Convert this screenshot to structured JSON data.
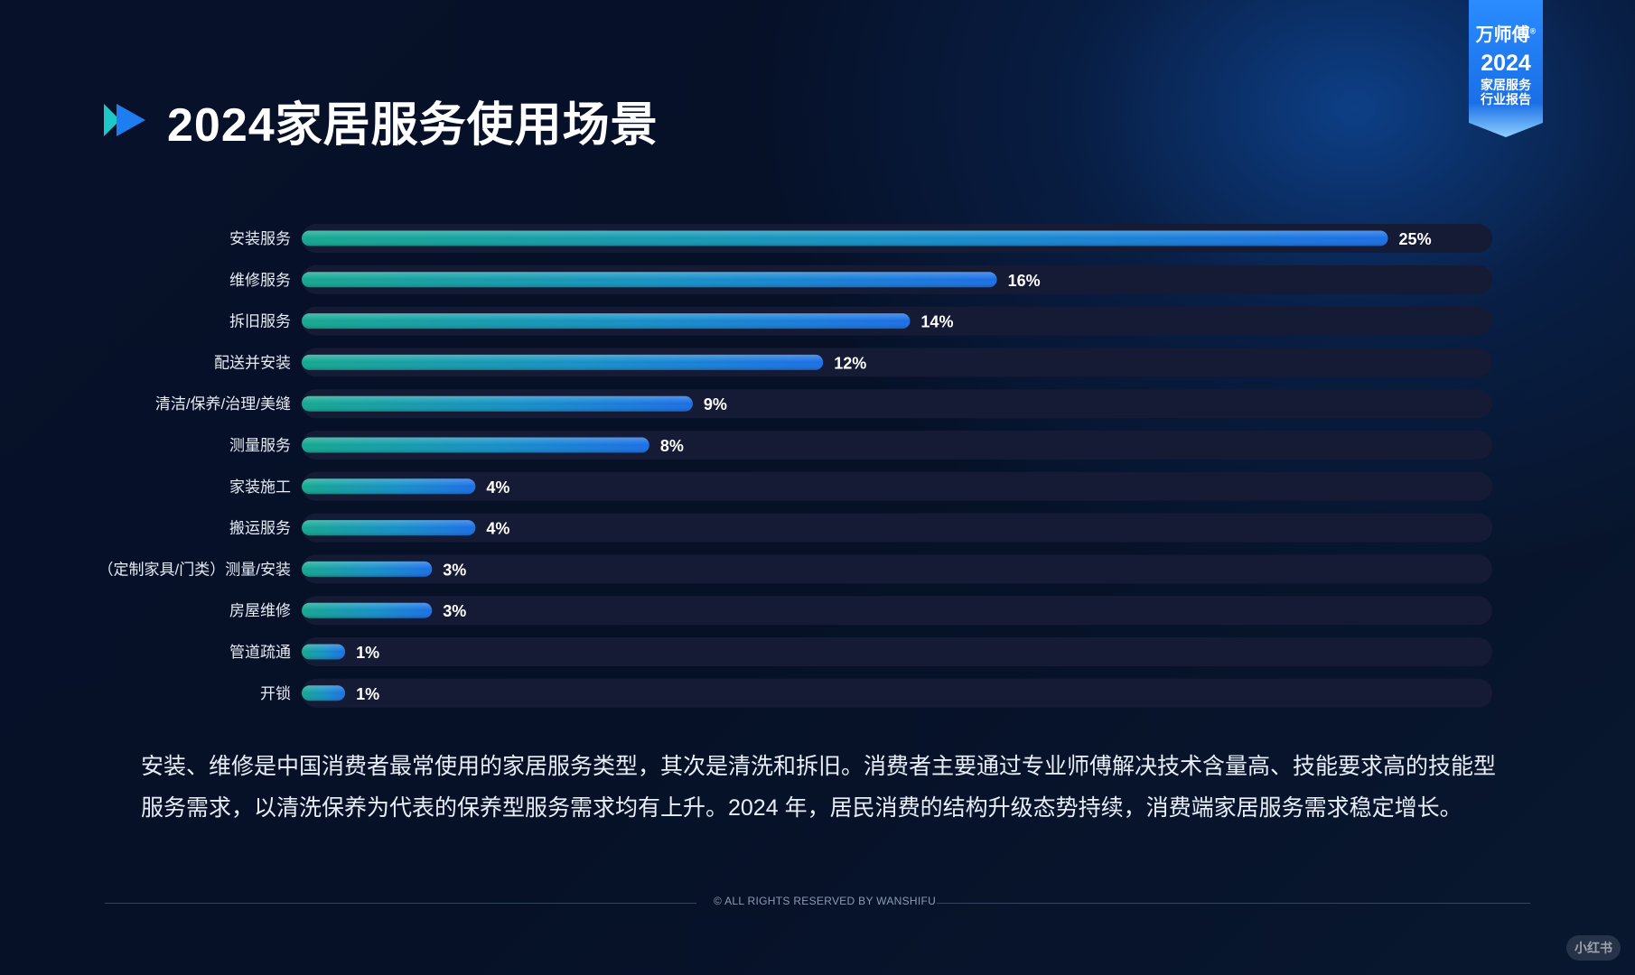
{
  "page": {
    "title": "2024家居服务使用场景",
    "badge": {
      "brand": "万师傅",
      "trademark": "®",
      "year": "2024",
      "line1": "家居服务",
      "line2": "行业报告"
    },
    "description": [
      "安装、维修是中国消费者最常使用的家居服务类型，其次是清洗和拆旧。消费者主要通过专业师傅解决技术含量高、技能要求高的技能型",
      "服务需求，以清洗保养为代表的保养型服务需求均有上升。2024 年，居民消费的结构升级态势持续，消费端家居服务需求稳定增长。"
    ],
    "footer": "© ALL RIGHTS RESERVED BY WANSHIFU",
    "watermark": "小红书",
    "colors": {
      "bar_start": "#14a890",
      "bar_end": "#1a6fe6",
      "track": "#151b34",
      "accent_cyan": "#1ec8c8",
      "accent_blue": "#1e7df0"
    }
  },
  "chart_data": {
    "type": "bar",
    "orientation": "horizontal",
    "title": "2024家居服务使用场景",
    "categories": [
      "安装服务",
      "维修服务",
      "拆旧服务",
      "配送并安装",
      "清洁/保养/治理/美缝",
      "测量服务",
      "家装施工",
      "搬运服务",
      "（定制家具/门类）测量/安装",
      "房屋维修",
      "管道疏通",
      "开锁"
    ],
    "values": [
      25,
      16,
      14,
      12,
      9,
      8,
      4,
      4,
      3,
      3,
      1,
      1
    ],
    "value_labels": [
      "25%",
      "16%",
      "14%",
      "12%",
      "9%",
      "8%",
      "4%",
      "4%",
      "3%",
      "3%",
      "1%",
      "1%"
    ],
    "unit": "%",
    "xlim": [
      0,
      27.4
    ],
    "grid": false,
    "legend": "none"
  }
}
